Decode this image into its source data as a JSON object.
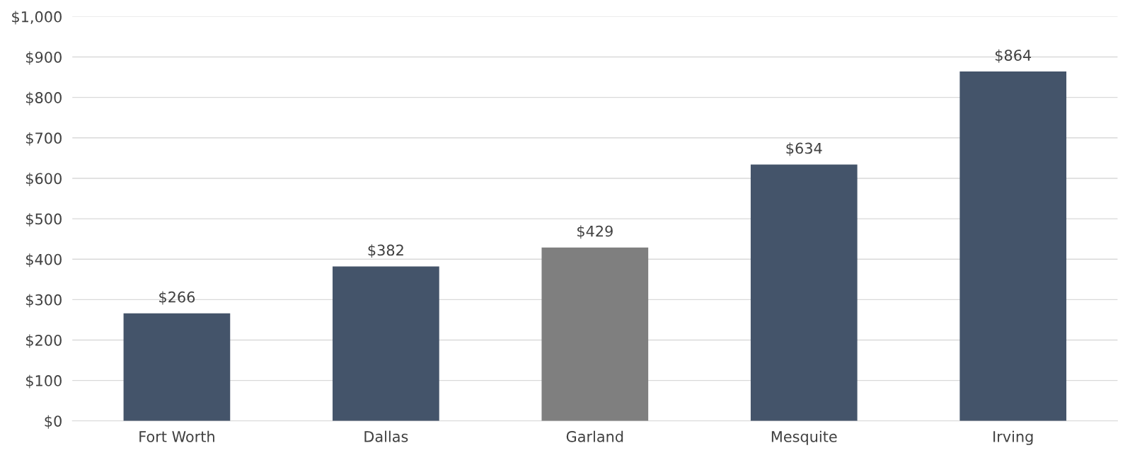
{
  "chart_data": {
    "type": "bar",
    "categories": [
      "Fort Worth",
      "Dallas",
      "Garland",
      "Mesquite",
      "Irving"
    ],
    "values": [
      266,
      382,
      429,
      634,
      864
    ],
    "colors": [
      "#44546a",
      "#44546a",
      "#7f7f7f",
      "#44546a",
      "#44546a"
    ],
    "value_labels": [
      "$266",
      "$382",
      "$429",
      "$634",
      "$864"
    ],
    "ylim": [
      0,
      1000
    ],
    "yticks": [
      {
        "value": 0,
        "label": "$0"
      },
      {
        "value": 100,
        "label": "$100"
      },
      {
        "value": 200,
        "label": "$200"
      },
      {
        "value": 300,
        "label": "$300"
      },
      {
        "value": 400,
        "label": "$400"
      },
      {
        "value": 500,
        "label": "$500"
      },
      {
        "value": 600,
        "label": "$600"
      },
      {
        "value": 700,
        "label": "$700"
      },
      {
        "value": 800,
        "label": "$800"
      },
      {
        "value": 900,
        "label": "$900"
      },
      {
        "value": 1000,
        "label": "$1,000"
      }
    ],
    "grid": "y"
  }
}
